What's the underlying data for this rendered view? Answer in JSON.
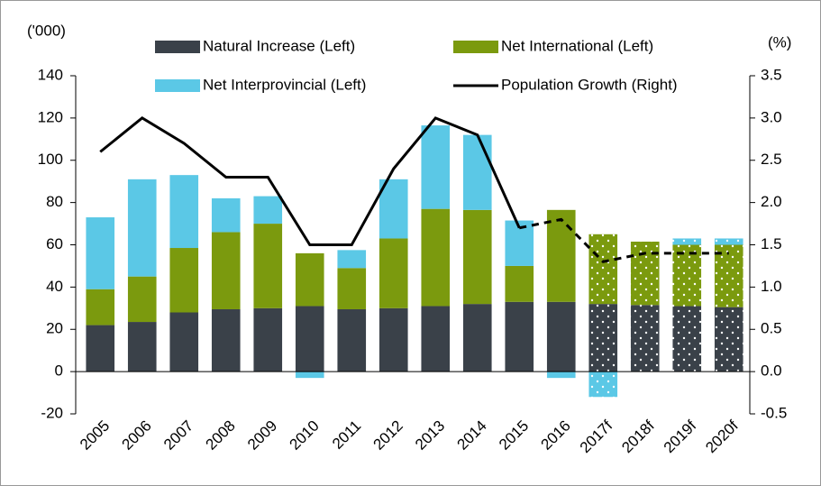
{
  "chart_data": {
    "type": "bar",
    "y_label": "('000)",
    "y2_label": "(%)",
    "categories": [
      "2005",
      "2006",
      "2007",
      "2008",
      "2009",
      "2010",
      "2011",
      "2012",
      "2013",
      "2014",
      "2015",
      "2016",
      "2017f",
      "2018f",
      "2019f",
      "2020f"
    ],
    "series": [
      {
        "name": "Natural Increase (Left)",
        "color": "#3a4149",
        "values": [
          22,
          23.5,
          28,
          29.5,
          30,
          31,
          29.5,
          30,
          31,
          32,
          33,
          33,
          32,
          31.5,
          31,
          30.5
        ]
      },
      {
        "name": "Net International (Left)",
        "color": "#7b9a0e",
        "values": [
          17,
          21.5,
          30.5,
          36.5,
          40,
          25,
          19.5,
          33,
          46,
          44.5,
          17,
          43.5,
          33,
          30,
          29,
          29.5
        ]
      },
      {
        "name": "Net Interprovincial (Left)",
        "color": "#5bc8e6",
        "values": [
          34,
          46,
          34.5,
          16,
          13,
          -3,
          8.5,
          28,
          39.5,
          35.5,
          21.5,
          -3,
          -12,
          0,
          3,
          3
        ]
      },
      {
        "name": "Population Growth (Right)",
        "color": "#000000",
        "type": "line",
        "axis": "y2",
        "values": [
          2.6,
          3.0,
          2.7,
          2.3,
          2.3,
          1.5,
          1.5,
          2.4,
          3.0,
          2.8,
          1.7,
          1.8,
          1.3,
          1.4,
          1.4,
          1.4
        ]
      }
    ],
    "ylim": [
      -20,
      140
    ],
    "yticks": [
      -20,
      0,
      20,
      40,
      60,
      80,
      100,
      120,
      140
    ],
    "y2lim": [
      -0.5,
      3.5
    ],
    "y2ticks": [
      -0.5,
      {
        "value": 0,
        "label": "0.0"
      },
      0.5,
      {
        "value": 1,
        "label": "1.0"
      },
      1.5,
      {
        "value": 2,
        "label": "2.0"
      },
      2.5,
      {
        "value": 3,
        "label": "3.0"
      },
      3.5
    ],
    "legend": "top"
  }
}
